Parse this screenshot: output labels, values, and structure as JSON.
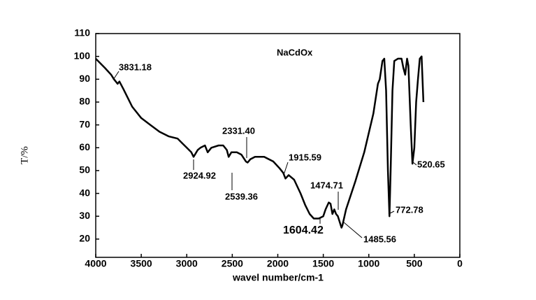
{
  "chart_data": {
    "type": "line",
    "title": "NaCdOx",
    "x_label": "wavel number/cm-1",
    "y_label": "T/%",
    "xlim": [
      4000,
      0
    ],
    "ylim": [
      12,
      110
    ],
    "xticks": [
      4000,
      3500,
      3000,
      2500,
      2000,
      1500,
      1000,
      500,
      0
    ],
    "yticks": [
      20,
      30,
      40,
      50,
      60,
      70,
      80,
      90,
      100,
      110
    ],
    "series": [
      {
        "color": "#000000",
        "x": [
          4000,
          3900,
          3831.18,
          3800,
          3760,
          3740,
          3700,
          3650,
          3600,
          3500,
          3400,
          3300,
          3200,
          3100,
          3050,
          3000,
          2950,
          2924.92,
          2880,
          2850,
          2800,
          2770,
          2730,
          2650,
          2600,
          2560,
          2539.36,
          2510,
          2450,
          2400,
          2350,
          2331.4,
          2300,
          2250,
          2150,
          2050,
          1980,
          1940,
          1915.59,
          1880,
          1820,
          1750,
          1700,
          1650,
          1604.42,
          1550,
          1500,
          1474.71,
          1440,
          1420,
          1400,
          1380,
          1360,
          1340,
          1300,
          1290,
          1250,
          1150,
          1050,
          950,
          900,
          880,
          850,
          830,
          810,
          790,
          772.78,
          760,
          740,
          720,
          680,
          640,
          620,
          600,
          580,
          565,
          540,
          520.65,
          500,
          480,
          460,
          440,
          420,
          400
        ],
        "values": [
          99,
          95,
          92,
          90,
          88,
          89,
          86,
          82,
          78,
          73,
          70,
          67,
          65,
          64,
          62,
          60,
          58,
          56,
          59,
          60,
          61,
          58,
          60,
          61,
          61,
          59,
          56,
          58,
          58,
          57,
          54,
          53.5,
          55,
          56,
          56,
          54,
          51,
          49,
          46.5,
          48,
          46,
          40,
          35,
          31,
          29,
          29,
          30,
          33,
          36,
          35.5,
          31,
          33,
          31,
          30,
          25,
          26,
          33,
          45,
          58,
          75,
          88,
          90,
          98,
          99,
          85,
          50,
          30,
          50,
          85,
          98,
          99,
          99,
          95,
          92,
          99,
          96,
          70,
          53,
          60,
          80,
          90,
          99,
          100,
          80
        ]
      }
    ],
    "annotations": [
      "3831.18",
      "2924.92",
      "2331.40",
      "2539.36",
      "1915.59",
      "1474.71",
      "1604.42",
      "1485.56",
      "772.78",
      "520.65"
    ]
  }
}
